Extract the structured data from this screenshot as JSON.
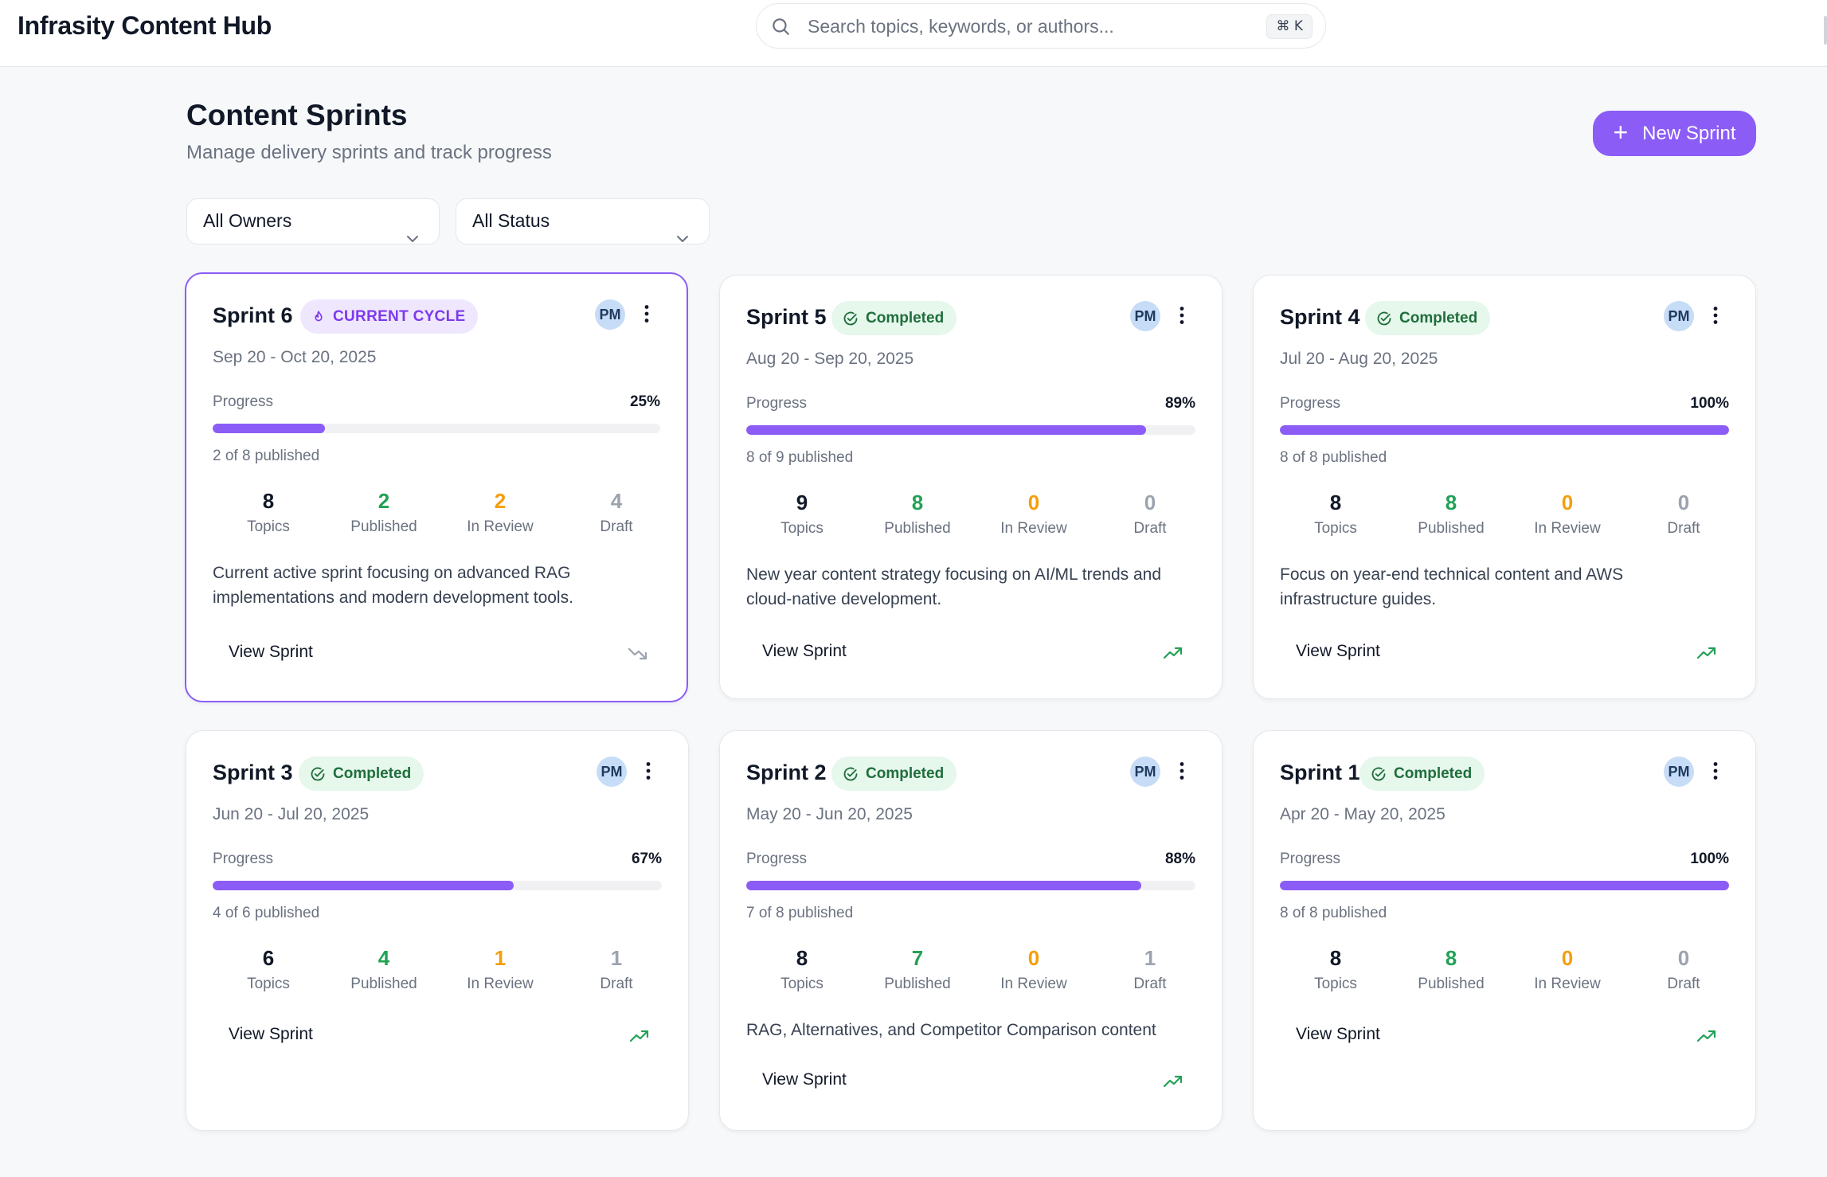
{
  "app": {
    "title": "Infrasity Content Hub"
  },
  "search": {
    "placeholder": "Search topics, keywords, or authors...",
    "shortcut": "⌘ K",
    "value": ""
  },
  "page": {
    "title": "Content Sprints",
    "subtitle": "Manage delivery sprints and track progress"
  },
  "actions": {
    "new_sprint_label": "New Sprint"
  },
  "filters": {
    "owner": "All Owners",
    "status": "All Status"
  },
  "stat_labels": {
    "topics": "Topics",
    "published": "Published",
    "in_review": "In Review",
    "draft": "Draft"
  },
  "colors": {
    "accent": "#8b5cf6",
    "published": "#22a156",
    "in_review": "#f59e0b",
    "draft": "#9ca3af",
    "trend_up": "#22a156",
    "trend_flat": "#9ca3af"
  },
  "sprints": [
    {
      "name": "Sprint 6",
      "status": "CURRENT CYCLE",
      "status_icon": "flame-icon",
      "current": true,
      "owner_initials": "PM",
      "dates": "Sep 20 - Oct 20, 2025",
      "progress_label": "Progress",
      "progress_pct": "25%",
      "progress_value": 25,
      "published_line": "2 of 8 published",
      "topics": "8",
      "published": "2",
      "in_review": "2",
      "draft": "4",
      "description": "Current active sprint focusing on advanced RAG implementations and modern development tools.",
      "view_label": "View Sprint",
      "trend": "trending-down"
    },
    {
      "name": "Sprint 5",
      "status": "Completed",
      "status_icon": "check-circle-icon",
      "current": false,
      "owner_initials": "PM",
      "dates": "Aug 20 - Sep 20, 2025",
      "progress_label": "Progress",
      "progress_pct": "89%",
      "progress_value": 89,
      "published_line": "8 of 9 published",
      "topics": "9",
      "published": "8",
      "in_review": "0",
      "draft": "0",
      "description": "New year content strategy focusing on AI/ML trends and cloud-native development.",
      "view_label": "View Sprint",
      "trend": "trending-up"
    },
    {
      "name": "Sprint 4",
      "status": "Completed",
      "status_icon": "check-circle-icon",
      "current": false,
      "owner_initials": "PM",
      "dates": "Jul 20 - Aug 20, 2025",
      "progress_label": "Progress",
      "progress_pct": "100%",
      "progress_value": 100,
      "published_line": "8 of 8 published",
      "topics": "8",
      "published": "8",
      "in_review": "0",
      "draft": "0",
      "description": "Focus on year-end technical content and AWS infrastructure guides.",
      "view_label": "View Sprint",
      "trend": "trending-up"
    },
    {
      "name": "Sprint 3",
      "status": "Completed",
      "status_icon": "check-circle-icon",
      "current": false,
      "owner_initials": "PM",
      "dates": "Jun 20 - Jul 20, 2025",
      "progress_label": "Progress",
      "progress_pct": "67%",
      "progress_value": 67,
      "published_line": "4 of 6 published",
      "topics": "6",
      "published": "4",
      "in_review": "1",
      "draft": "1",
      "description": "",
      "view_label": "View Sprint",
      "trend": "trending-up"
    },
    {
      "name": "Sprint 2",
      "status": "Completed",
      "status_icon": "check-circle-icon",
      "current": false,
      "owner_initials": "PM",
      "dates": "May 20 - Jun 20, 2025",
      "progress_label": "Progress",
      "progress_pct": "88%",
      "progress_value": 88,
      "published_line": "7 of 8 published",
      "topics": "8",
      "published": "7",
      "in_review": "0",
      "draft": "1",
      "description": "RAG, Alternatives, and Competitor Comparison content",
      "view_label": "View Sprint",
      "trend": "trending-up"
    },
    {
      "name": "Sprint 1",
      "status": "Completed",
      "status_icon": "check-circle-icon",
      "current": false,
      "owner_initials": "PM",
      "dates": "Apr 20 - May 20, 2025",
      "progress_label": "Progress",
      "progress_pct": "100%",
      "progress_value": 100,
      "published_line": "8 of 8 published",
      "topics": "8",
      "published": "8",
      "in_review": "0",
      "draft": "0",
      "description": "",
      "view_label": "View Sprint",
      "trend": "trending-up"
    }
  ]
}
